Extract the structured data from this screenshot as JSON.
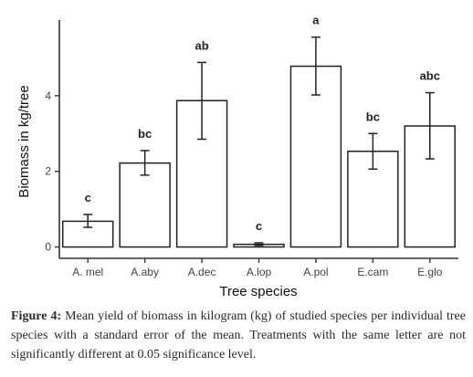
{
  "chart_data": {
    "type": "bar",
    "categories": [
      "A. mel",
      "A.aby",
      "A.dec",
      "A.lop",
      "A.pol",
      "E.cam",
      "E.glo"
    ],
    "values": [
      0.68,
      2.22,
      3.87,
      0.07,
      4.78,
      2.53,
      3.2
    ],
    "error_low": [
      0.52,
      1.9,
      2.85,
      0.04,
      4.02,
      2.06,
      2.33
    ],
    "error_high": [
      0.86,
      2.55,
      4.88,
      0.11,
      5.55,
      3.0,
      4.08
    ],
    "significance": [
      "c",
      "bc",
      "ab",
      "c",
      "a",
      "bc",
      "abc"
    ],
    "xlabel": "Tree species",
    "ylabel": "Biomass in kg/tree",
    "ylim": [
      -0.3,
      6.0
    ],
    "yticks": [
      0,
      2,
      4
    ],
    "grid": false,
    "colors": {
      "bar_fill": "#ffffff",
      "bar_stroke": "#222222",
      "axis": "#333333"
    }
  },
  "caption": {
    "label": "Figure 4:",
    "text": " Mean yield of biomass in kilogram (kg) of studied species per individual tree species with a standard error of the mean. Treatments with the same letter are not significantly different at 0.05 significance level."
  }
}
